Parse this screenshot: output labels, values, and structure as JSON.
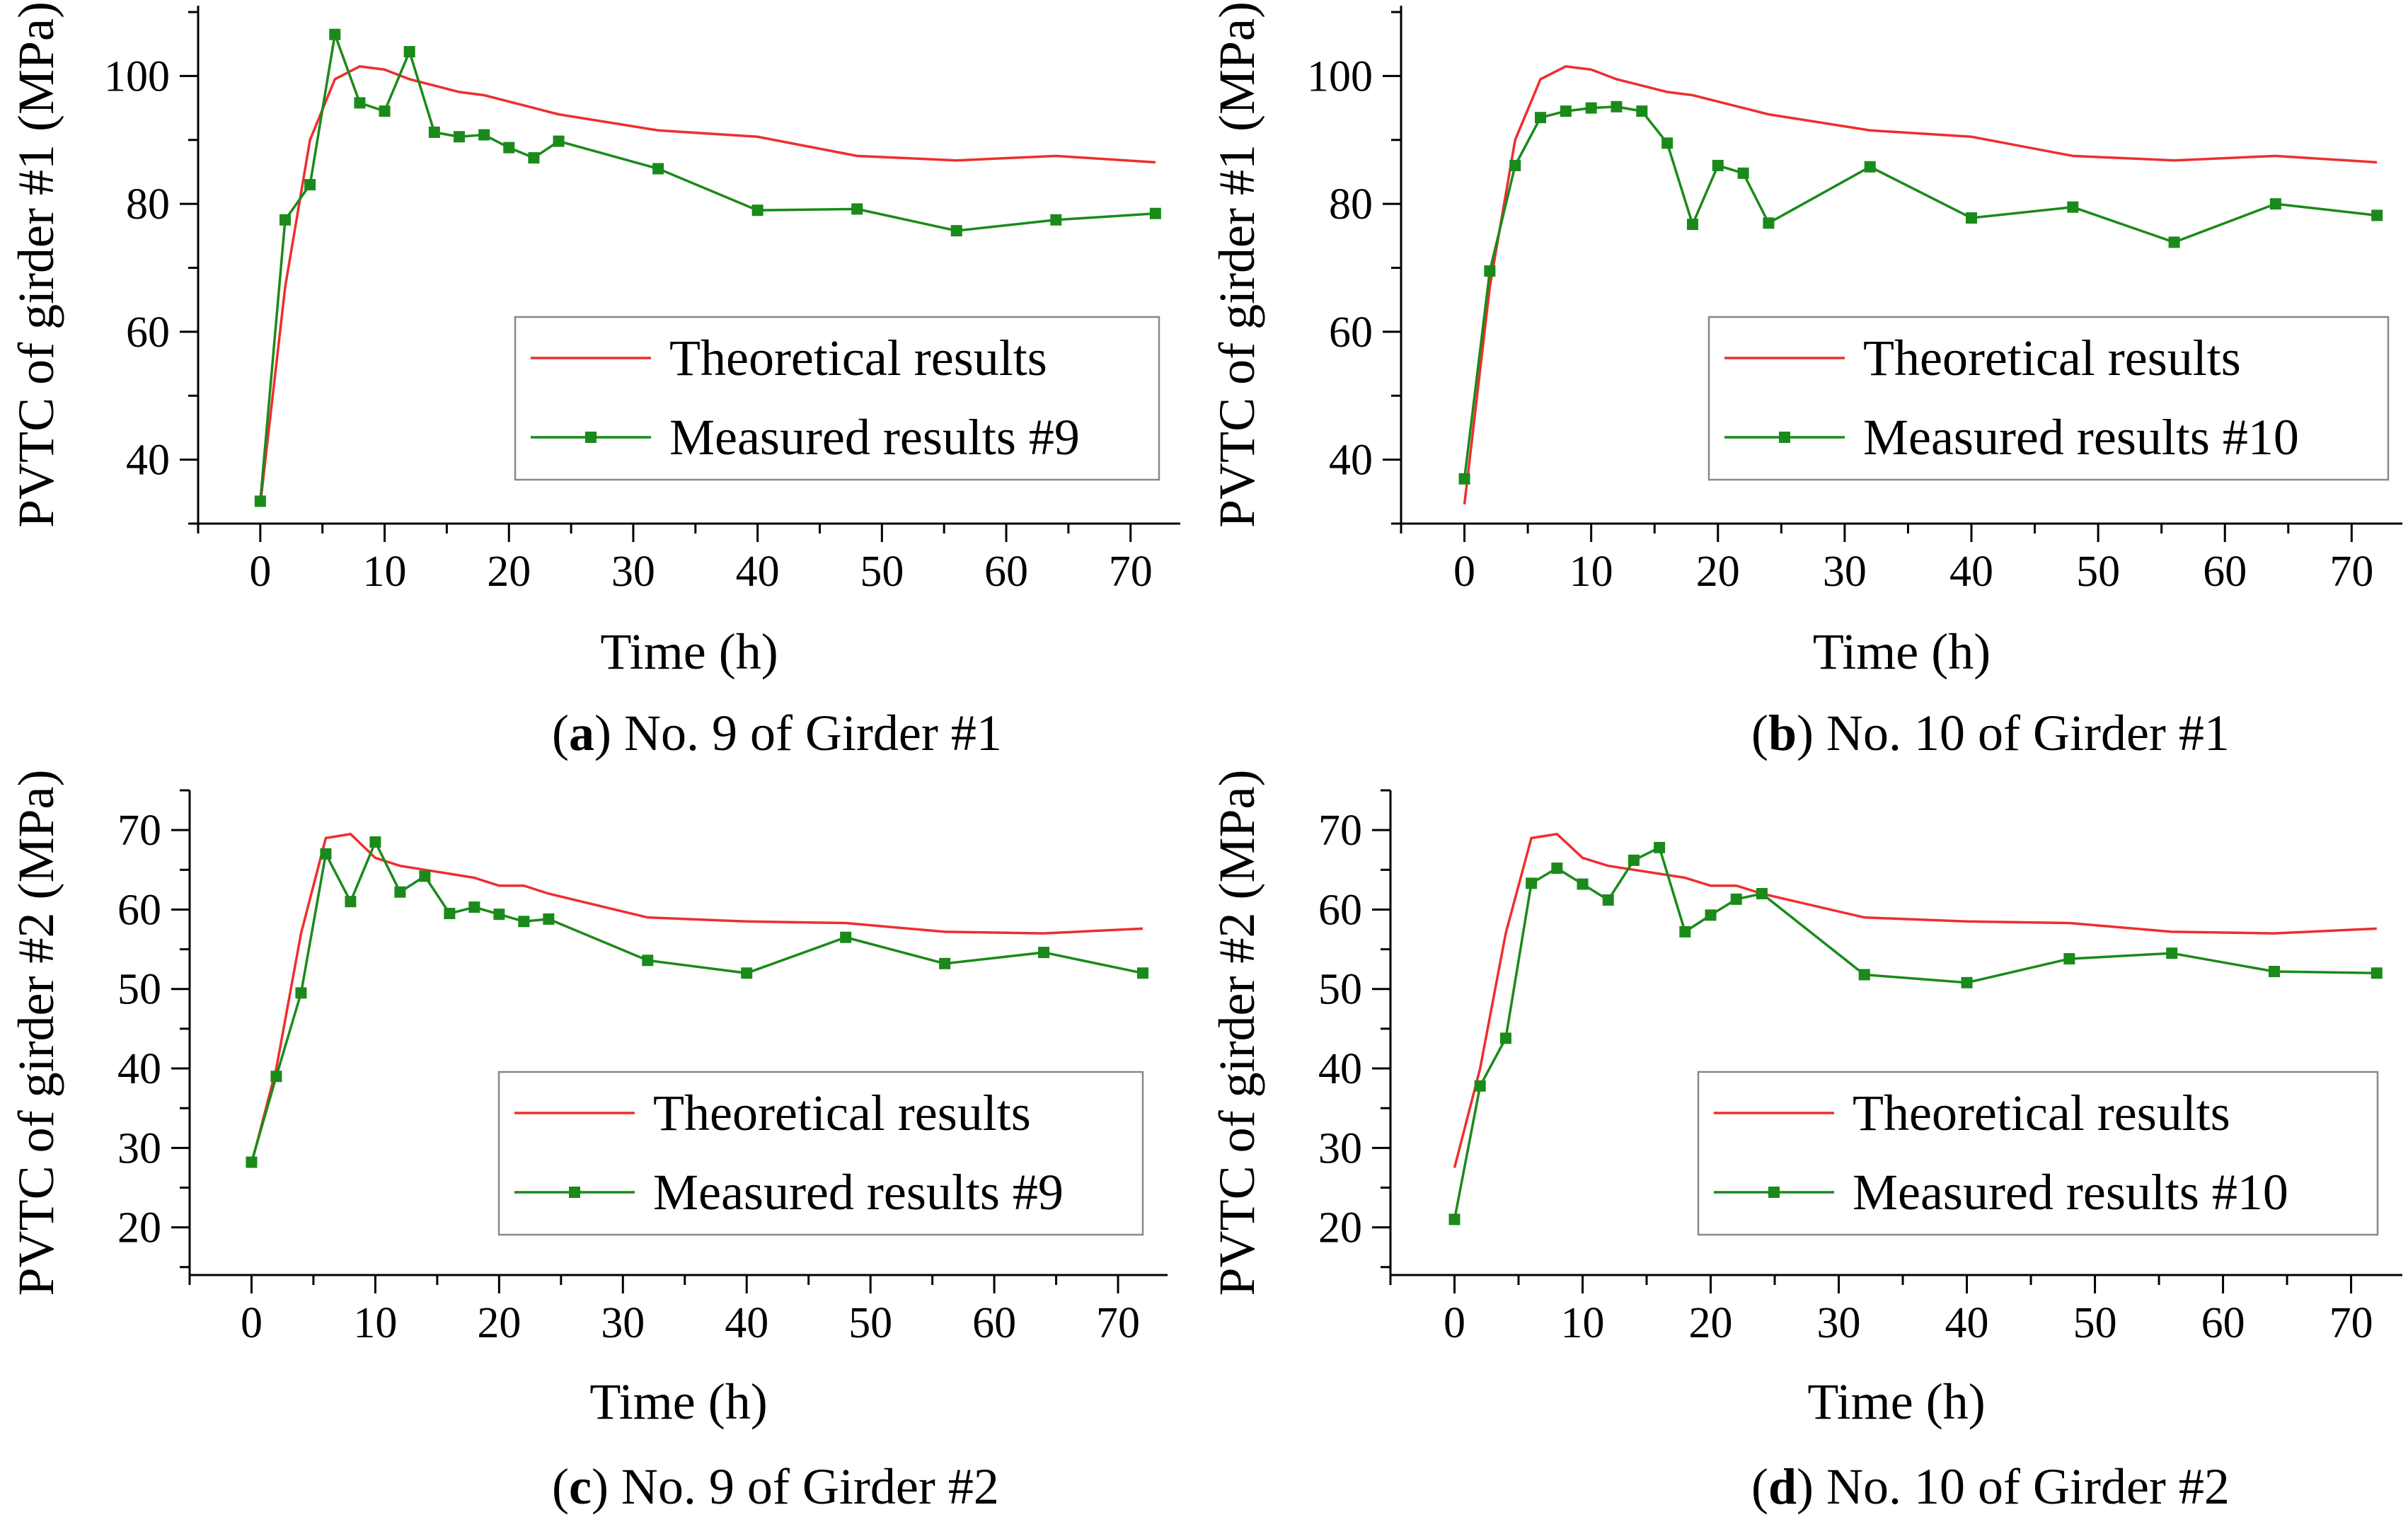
{
  "colors": {
    "theoretical": "#ee2e2e",
    "measured": "#1a8a1a",
    "axis": "#000000",
    "legend_border": "#888888"
  },
  "chart_data": [
    {
      "id": "a",
      "type": "line",
      "caption_letter": "a",
      "caption_rest": ") No. 9 of Girder #1",
      "caption_open": "(",
      "xlabel": "Time (h)",
      "ylabel": "PVTC of girder #1 (MPa)",
      "xlim": [
        -5,
        74
      ],
      "ylim": [
        30,
        111
      ],
      "xticks": [
        0,
        10,
        20,
        30,
        40,
        50,
        60,
        70
      ],
      "yticks": [
        40,
        60,
        80,
        100
      ],
      "legend": "bottom-right",
      "series": [
        {
          "name": "Theoretical results",
          "marker": false,
          "x": [
            0,
            2,
            4,
            6,
            8,
            10,
            12,
            14,
            16,
            18,
            20,
            22,
            24,
            32,
            40,
            48,
            56,
            64,
            72
          ],
          "y": [
            33,
            67,
            90,
            99.5,
            101.5,
            101,
            99.5,
            98.5,
            97.5,
            97,
            96,
            95,
            94,
            91.5,
            90.5,
            87.5,
            86.8,
            87.5,
            86.5
          ]
        },
        {
          "name": "Measured results #9",
          "marker": true,
          "x": [
            0,
            2,
            4,
            6,
            8,
            10,
            12,
            14,
            16,
            18,
            20,
            22,
            24,
            32,
            40,
            48,
            56,
            64,
            72
          ],
          "y": [
            33.5,
            77.5,
            83,
            106.5,
            95.8,
            94.5,
            103.8,
            91.2,
            90.5,
            90.8,
            88.8,
            87.2,
            89.8,
            85.5,
            79,
            79.2,
            75.8,
            77.5,
            78.5
          ]
        }
      ]
    },
    {
      "id": "b",
      "type": "line",
      "caption_letter": "b",
      "caption_rest": ") No. 10 of Girder #1",
      "caption_open": "(",
      "xlabel": "Time (h)",
      "ylabel": "PVTC of girder #1 (MPa)",
      "xlim": [
        -5,
        74
      ],
      "ylim": [
        30,
        111
      ],
      "xticks": [
        0,
        10,
        20,
        30,
        40,
        50,
        60,
        70
      ],
      "yticks": [
        40,
        60,
        80,
        100
      ],
      "legend": "bottom-right",
      "series": [
        {
          "name": "Theoretical results",
          "marker": false,
          "x": [
            0,
            2,
            4,
            6,
            8,
            10,
            12,
            14,
            16,
            18,
            20,
            22,
            24,
            32,
            40,
            48,
            56,
            64,
            72
          ],
          "y": [
            33,
            67,
            90,
            99.5,
            101.5,
            101,
            99.5,
            98.5,
            97.5,
            97,
            96,
            95,
            94,
            91.5,
            90.5,
            87.5,
            86.8,
            87.5,
            86.5
          ]
        },
        {
          "name": "Measured results #10",
          "marker": true,
          "x": [
            0,
            2,
            4,
            6,
            8,
            10,
            12,
            14,
            16,
            18,
            20,
            22,
            24,
            32,
            40,
            48,
            56,
            64,
            72
          ],
          "y": [
            37,
            69.5,
            86,
            93.5,
            94.5,
            95,
            95.2,
            94.5,
            89.5,
            76.8,
            86,
            84.8,
            77,
            85.8,
            77.8,
            79.5,
            74,
            80,
            78.2
          ]
        }
      ]
    },
    {
      "id": "c",
      "type": "line",
      "caption_letter": "c",
      "caption_rest": ") No. 9 of Girder #2",
      "caption_open": "(",
      "xlabel": "Time (h)",
      "ylabel": "PVTC of girder #2 (MPa)",
      "xlim": [
        -5,
        74
      ],
      "ylim": [
        14,
        75
      ],
      "xticks": [
        0,
        10,
        20,
        30,
        40,
        50,
        60,
        70
      ],
      "yticks": [
        20,
        30,
        40,
        50,
        60,
        70
      ],
      "legend": "bottom-right",
      "series": [
        {
          "name": "Theoretical results",
          "marker": false,
          "x": [
            0,
            2,
            4,
            6,
            8,
            10,
            12,
            14,
            16,
            18,
            20,
            22,
            24,
            32,
            40,
            48,
            56,
            64,
            72
          ],
          "y": [
            28,
            40,
            57,
            69,
            69.5,
            66.5,
            65.5,
            65,
            64.5,
            64,
            63,
            63,
            62,
            59,
            58.5,
            58.3,
            57.2,
            57,
            57.6
          ]
        },
        {
          "name": "Measured results #9",
          "marker": true,
          "x": [
            0,
            2,
            4,
            6,
            8,
            10,
            12,
            14,
            16,
            18,
            20,
            22,
            24,
            32,
            40,
            48,
            56,
            64,
            72
          ],
          "y": [
            28.2,
            39,
            49.5,
            67,
            61,
            68.5,
            62.2,
            64.2,
            59.5,
            60.3,
            59.4,
            58.5,
            58.8,
            53.6,
            52,
            56.5,
            53.2,
            54.6,
            52
          ]
        }
      ]
    },
    {
      "id": "d",
      "type": "line",
      "caption_letter": "d",
      "caption_rest": ") No. 10 of Girder #2",
      "caption_open": "(",
      "xlabel": "Time (h)",
      "ylabel": "PVTC of girder #2 (MPa)",
      "xlim": [
        -5,
        74
      ],
      "ylim": [
        14,
        75
      ],
      "xticks": [
        0,
        10,
        20,
        30,
        40,
        50,
        60,
        70
      ],
      "yticks": [
        20,
        30,
        40,
        50,
        60,
        70
      ],
      "legend": "bottom-right",
      "series": [
        {
          "name": "Theoretical results",
          "marker": false,
          "x": [
            0,
            2,
            4,
            6,
            8,
            10,
            12,
            14,
            16,
            18,
            20,
            22,
            24,
            32,
            40,
            48,
            56,
            64,
            72
          ],
          "y": [
            27.5,
            40,
            57,
            69,
            69.5,
            66.5,
            65.5,
            65,
            64.5,
            64,
            63,
            63,
            62,
            59,
            58.5,
            58.3,
            57.2,
            57,
            57.6
          ]
        },
        {
          "name": "Measured results #10",
          "marker": true,
          "x": [
            0,
            2,
            4,
            6,
            8,
            10,
            12,
            14,
            16,
            18,
            20,
            22,
            24,
            32,
            40,
            48,
            56,
            64,
            72
          ],
          "y": [
            21,
            37.8,
            43.8,
            63.3,
            65.2,
            63.2,
            61.2,
            66.2,
            67.8,
            57.2,
            59.3,
            61.3,
            62,
            51.8,
            50.8,
            53.8,
            54.5,
            52.2,
            52
          ]
        }
      ]
    }
  ]
}
